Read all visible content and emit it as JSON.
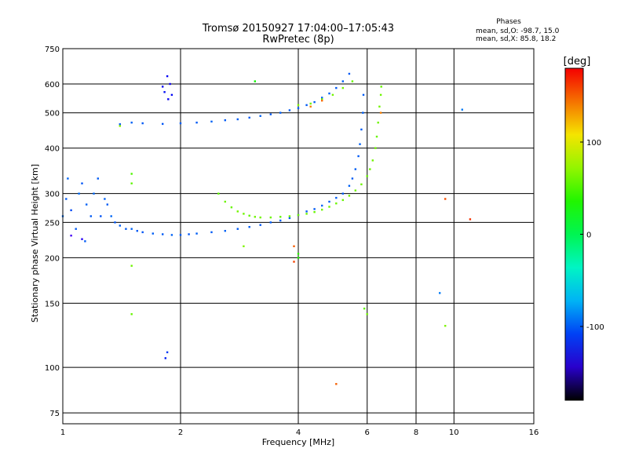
{
  "chart_data": {
    "type": "scatter",
    "title": "Tromsø 20150927 17:04:00–17:05:43",
    "subtitle": "RwPretec (8p)",
    "xlabel": "Frequency [MHz]",
    "ylabel": "Stationary phase Virtual Height [km]",
    "x_scale": "log",
    "y_scale": "log",
    "xlim": [
      1,
      16
    ],
    "ylim": [
      70,
      750
    ],
    "x_ticks": [
      1,
      2,
      4,
      6,
      8,
      10,
      16
    ],
    "y_ticks": [
      75,
      100,
      150,
      200,
      250,
      300,
      400,
      500,
      600,
      750
    ],
    "grid": true,
    "stats": {
      "header": "Phases",
      "line_o": "mean, sd,O:  -98.7,  15.0",
      "line_x": "mean, sd,X:   85.8,  18.2"
    },
    "colorbar": {
      "label": "[deg]",
      "range": [
        -180,
        180
      ],
      "ticks": [
        100,
        0,
        -100
      ]
    },
    "series": [
      {
        "values": [
          [
            1.0,
            260,
            -95
          ],
          [
            1.02,
            290,
            -100
          ],
          [
            1.03,
            330,
            -98
          ],
          [
            1.05,
            270,
            -105
          ],
          [
            1.08,
            240,
            -100
          ],
          [
            1.1,
            300,
            -95
          ],
          [
            1.12,
            320,
            -102
          ],
          [
            1.15,
            280,
            -98
          ],
          [
            1.18,
            260,
            -100
          ],
          [
            1.2,
            300,
            -96
          ],
          [
            1.23,
            330,
            -100
          ],
          [
            1.25,
            260,
            -103
          ],
          [
            1.28,
            290,
            -98
          ],
          [
            1.3,
            280,
            -100
          ],
          [
            1.33,
            260,
            -97
          ],
          [
            1.36,
            250,
            -101
          ],
          [
            1.4,
            245,
            -99
          ],
          [
            1.45,
            240,
            -100
          ],
          [
            1.5,
            240,
            -98
          ],
          [
            1.55,
            237,
            -100
          ],
          [
            1.6,
            235,
            -102
          ],
          [
            1.7,
            233,
            -99
          ],
          [
            1.8,
            232,
            -100
          ],
          [
            1.9,
            231,
            -98
          ],
          [
            2.0,
            231,
            -100
          ],
          [
            2.1,
            232,
            -101
          ],
          [
            2.2,
            233,
            -99
          ],
          [
            2.4,
            235,
            -100
          ],
          [
            2.6,
            237,
            -98
          ],
          [
            2.8,
            240,
            -100
          ],
          [
            3.0,
            243,
            -99
          ],
          [
            3.2,
            246,
            -101
          ],
          [
            3.4,
            250,
            -100
          ],
          [
            3.6,
            253,
            -98
          ],
          [
            3.8,
            257,
            -100
          ],
          [
            4.0,
            262,
            -99
          ],
          [
            4.2,
            268,
            -101
          ],
          [
            4.4,
            272,
            -100
          ],
          [
            4.6,
            278,
            -98
          ],
          [
            4.8,
            285,
            -100
          ],
          [
            5.0,
            292,
            -99
          ],
          [
            5.2,
            300,
            -100
          ],
          [
            5.4,
            315,
            -98
          ],
          [
            5.5,
            330,
            -100
          ],
          [
            5.6,
            350,
            -99
          ],
          [
            5.7,
            380,
            -100
          ],
          [
            5.75,
            410,
            -98
          ],
          [
            5.8,
            450,
            -100
          ],
          [
            5.85,
            500,
            -99
          ],
          [
            5.87,
            560,
            -100
          ],
          [
            1.4,
            465,
            -100
          ],
          [
            1.5,
            470,
            -98
          ],
          [
            1.6,
            468,
            -100
          ],
          [
            1.8,
            466,
            -101
          ],
          [
            2.0,
            468,
            -99
          ],
          [
            2.2,
            470,
            -100
          ],
          [
            2.4,
            473,
            -98
          ],
          [
            2.6,
            477,
            -100
          ],
          [
            2.8,
            480,
            -99
          ],
          [
            3.0,
            485,
            -100
          ],
          [
            3.2,
            490,
            -98
          ],
          [
            3.4,
            495,
            -100
          ],
          [
            3.6,
            500,
            -99
          ],
          [
            3.8,
            508,
            -100
          ],
          [
            4.0,
            515,
            -98
          ],
          [
            4.2,
            525,
            -100
          ],
          [
            4.4,
            535,
            -99
          ],
          [
            4.6,
            550,
            -100
          ],
          [
            4.8,
            565,
            -98
          ],
          [
            5.0,
            585,
            -100
          ],
          [
            5.2,
            610,
            -99
          ],
          [
            5.4,
            640,
            -100
          ],
          [
            1.8,
            590,
            -130
          ],
          [
            1.82,
            570,
            -125
          ],
          [
            1.85,
            630,
            -128
          ],
          [
            1.88,
            600,
            -132
          ],
          [
            1.9,
            560,
            -127
          ],
          [
            1.86,
            545,
            -130
          ],
          [
            1.85,
            110,
            -110
          ],
          [
            1.83,
            106,
            -120
          ],
          [
            1.05,
            230,
            -150
          ],
          [
            1.12,
            225,
            -140
          ],
          [
            1.14,
            222,
            -100
          ],
          [
            9.2,
            160,
            -90
          ],
          [
            10.5,
            510,
            -90
          ]
        ]
      },
      {
        "values": [
          [
            2.5,
            300,
            55
          ],
          [
            2.6,
            285,
            60
          ],
          [
            2.7,
            275,
            58
          ],
          [
            2.8,
            268,
            62
          ],
          [
            2.9,
            264,
            60
          ],
          [
            3.0,
            261,
            57
          ],
          [
            3.1,
            259,
            60
          ],
          [
            3.2,
            258,
            62
          ],
          [
            3.4,
            258,
            60
          ],
          [
            3.6,
            259,
            58
          ],
          [
            3.8,
            260,
            60
          ],
          [
            4.0,
            262,
            62
          ],
          [
            4.2,
            264,
            60
          ],
          [
            4.4,
            267,
            58
          ],
          [
            4.6,
            271,
            60
          ],
          [
            4.8,
            276,
            62
          ],
          [
            5.0,
            282,
            60
          ],
          [
            5.2,
            288,
            58
          ],
          [
            5.4,
            296,
            60
          ],
          [
            5.6,
            306,
            62
          ],
          [
            5.8,
            318,
            60
          ],
          [
            6.0,
            335,
            58
          ],
          [
            6.1,
            350,
            60
          ],
          [
            6.2,
            370,
            62
          ],
          [
            6.3,
            400,
            60
          ],
          [
            6.35,
            430,
            58
          ],
          [
            6.4,
            470,
            60
          ],
          [
            6.45,
            520,
            62
          ],
          [
            6.5,
            560,
            60
          ],
          [
            6.52,
            590,
            58
          ],
          [
            4.0,
            525,
            65
          ],
          [
            4.3,
            530,
            60
          ],
          [
            4.6,
            545,
            58
          ],
          [
            4.9,
            560,
            62
          ],
          [
            5.2,
            585,
            60
          ],
          [
            5.5,
            610,
            58
          ],
          [
            1.5,
            340,
            50
          ],
          [
            1.5,
            320,
            55
          ],
          [
            1.5,
            190,
            60
          ],
          [
            1.5,
            140,
            58
          ],
          [
            2.9,
            215,
            65
          ],
          [
            3.1,
            610,
            30
          ],
          [
            4.0,
            200,
            35
          ],
          [
            4.0,
            205,
            40
          ],
          [
            5.9,
            145,
            55
          ],
          [
            6.0,
            140,
            62
          ],
          [
            9.5,
            130,
            65
          ],
          [
            1.4,
            460,
            70
          ]
        ]
      },
      {
        "values": [
          [
            3.9,
            215,
            150
          ],
          [
            3.9,
            195,
            160
          ],
          [
            4.3,
            520,
            140
          ],
          [
            4.6,
            540,
            145
          ],
          [
            5.0,
            90,
            150
          ],
          [
            9.5,
            290,
            155
          ],
          [
            11.0,
            255,
            165
          ],
          [
            6.5,
            500,
            140
          ]
        ]
      }
    ]
  }
}
